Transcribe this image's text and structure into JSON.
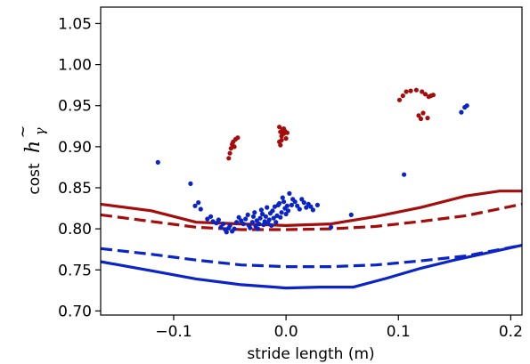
{
  "chart_data": {
    "type": "scatter",
    "xlabel": "stride length (m)",
    "ylabel": {
      "prefix": "cost",
      "symbol": "h",
      "subscript": "γ"
    },
    "xlim": [
      -0.165,
      0.21
    ],
    "ylim": [
      0.695,
      1.07
    ],
    "xticks": [
      {
        "value": -0.1,
        "label": "−0.1"
      },
      {
        "value": 0.0,
        "label": "0.0"
      },
      {
        "value": 0.1,
        "label": "0.1"
      },
      {
        "value": 0.2,
        "label": "0.2"
      }
    ],
    "yticks": [
      {
        "value": 0.7,
        "label": "0.70"
      },
      {
        "value": 0.75,
        "label": "0.75"
      },
      {
        "value": 0.8,
        "label": "0.80"
      },
      {
        "value": 0.85,
        "label": "0.85"
      },
      {
        "value": 0.9,
        "label": "0.90"
      },
      {
        "value": 0.95,
        "label": "0.95"
      },
      {
        "value": 1.0,
        "label": "1.00"
      },
      {
        "value": 1.05,
        "label": "1.05"
      }
    ],
    "grid": false,
    "colors": {
      "red": "#a50d0d",
      "blue": "#0b24c8"
    },
    "series": [
      {
        "kind": "line",
        "style": "solid",
        "color": "red",
        "x": [
          -0.165,
          -0.12,
          -0.08,
          -0.04,
          0.0,
          0.04,
          0.08,
          0.12,
          0.16,
          0.19,
          0.21
        ],
        "y": [
          0.83,
          0.822,
          0.808,
          0.806,
          0.804,
          0.806,
          0.815,
          0.826,
          0.84,
          0.846,
          0.846
        ]
      },
      {
        "kind": "line",
        "style": "dashed",
        "color": "red",
        "x": [
          -0.165,
          -0.12,
          -0.08,
          -0.04,
          0.0,
          0.04,
          0.08,
          0.12,
          0.16,
          0.21
        ],
        "y": [
          0.817,
          0.809,
          0.802,
          0.799,
          0.799,
          0.8,
          0.803,
          0.809,
          0.816,
          0.83
        ]
      },
      {
        "kind": "line",
        "style": "dashed",
        "color": "blue",
        "x": [
          -0.165,
          -0.12,
          -0.08,
          -0.04,
          0.0,
          0.04,
          0.08,
          0.12,
          0.16,
          0.21
        ],
        "y": [
          0.776,
          0.769,
          0.762,
          0.756,
          0.754,
          0.754,
          0.756,
          0.761,
          0.767,
          0.78
        ]
      },
      {
        "kind": "line",
        "style": "solid",
        "color": "blue",
        "x": [
          -0.165,
          -0.12,
          -0.08,
          -0.04,
          -0.01,
          0.0,
          0.03,
          0.06,
          0.09,
          0.12,
          0.15,
          0.18,
          0.21
        ],
        "y": [
          0.76,
          0.749,
          0.739,
          0.732,
          0.729,
          0.728,
          0.729,
          0.729,
          0.74,
          0.752,
          0.762,
          0.771,
          0.78
        ]
      },
      {
        "kind": "points",
        "color": "red",
        "points": [
          [
            -0.051,
            0.886
          ],
          [
            -0.05,
            0.892
          ],
          [
            -0.049,
            0.898
          ],
          [
            -0.048,
            0.903
          ],
          [
            -0.047,
            0.906
          ],
          [
            -0.045,
            0.909
          ],
          [
            -0.043,
            0.911
          ],
          [
            -0.046,
            0.9
          ],
          [
            -0.006,
            0.924
          ],
          [
            -0.005,
            0.918
          ],
          [
            -0.004,
            0.913
          ],
          [
            -0.006,
            0.906
          ],
          [
            -0.005,
            0.902
          ],
          [
            -0.003,
            0.921
          ],
          [
            -0.002,
            0.916
          ],
          [
            -0.001,
            0.919
          ],
          [
            0.0,
            0.91
          ],
          [
            -0.004,
            0.908
          ],
          [
            -0.002,
            0.922
          ],
          [
            0.001,
            0.917
          ],
          [
            0.101,
            0.957
          ],
          [
            0.104,
            0.962
          ],
          [
            0.107,
            0.967
          ],
          [
            0.111,
            0.968
          ],
          [
            0.116,
            0.969
          ],
          [
            0.118,
            0.938
          ],
          [
            0.12,
            0.934
          ],
          [
            0.121,
            0.967
          ],
          [
            0.122,
            0.941
          ],
          [
            0.124,
            0.964
          ],
          [
            0.126,
            0.935
          ],
          [
            0.127,
            0.961
          ],
          [
            0.129,
            0.962
          ],
          [
            0.131,
            0.963
          ]
        ]
      },
      {
        "kind": "points",
        "color": "blue",
        "points": [
          [
            -0.114,
            0.881
          ],
          [
            -0.085,
            0.855
          ],
          [
            -0.081,
            0.828
          ],
          [
            -0.078,
            0.832
          ],
          [
            -0.076,
            0.824
          ],
          [
            -0.07,
            0.812
          ],
          [
            -0.067,
            0.815
          ],
          [
            -0.065,
            0.809
          ],
          [
            -0.062,
            0.807
          ],
          [
            -0.06,
            0.811
          ],
          [
            -0.058,
            0.802
          ],
          [
            -0.056,
            0.806
          ],
          [
            -0.054,
            0.799
          ],
          [
            -0.053,
            0.796
          ],
          [
            -0.051,
            0.801
          ],
          [
            -0.05,
            0.804
          ],
          [
            -0.048,
            0.797
          ],
          [
            -0.046,
            0.8
          ],
          [
            -0.044,
            0.808
          ],
          [
            -0.042,
            0.814
          ],
          [
            -0.04,
            0.81
          ],
          [
            -0.038,
            0.806
          ],
          [
            -0.036,
            0.812
          ],
          [
            -0.034,
            0.817
          ],
          [
            -0.033,
            0.804
          ],
          [
            -0.032,
            0.801
          ],
          [
            -0.03,
            0.808
          ],
          [
            -0.029,
            0.815
          ],
          [
            -0.028,
            0.82
          ],
          [
            -0.027,
            0.803
          ],
          [
            -0.026,
            0.81
          ],
          [
            -0.025,
            0.8
          ],
          [
            -0.024,
            0.806
          ],
          [
            -0.023,
            0.813
          ],
          [
            -0.022,
            0.823
          ],
          [
            -0.021,
            0.818
          ],
          [
            -0.02,
            0.805
          ],
          [
            -0.019,
            0.809
          ],
          [
            -0.018,
            0.815
          ],
          [
            -0.017,
            0.826
          ],
          [
            -0.016,
            0.807
          ],
          [
            -0.015,
            0.811
          ],
          [
            -0.014,
            0.819
          ],
          [
            -0.013,
            0.804
          ],
          [
            -0.012,
            0.822
          ],
          [
            -0.011,
            0.813
          ],
          [
            -0.01,
            0.827
          ],
          [
            -0.009,
            0.808
          ],
          [
            -0.008,
            0.816
          ],
          [
            -0.007,
            0.829
          ],
          [
            -0.006,
            0.831
          ],
          [
            -0.005,
            0.814
          ],
          [
            -0.004,
            0.82
          ],
          [
            -0.003,
            0.838
          ],
          [
            -0.002,
            0.833
          ],
          [
            -0.001,
            0.825
          ],
          [
            0.0,
            0.818
          ],
          [
            0.001,
            0.828
          ],
          [
            0.002,
            0.822
          ],
          [
            0.003,
            0.843
          ],
          [
            0.005,
            0.829
          ],
          [
            0.006,
            0.836
          ],
          [
            0.008,
            0.833
          ],
          [
            0.01,
            0.828
          ],
          [
            0.012,
            0.824
          ],
          [
            0.014,
            0.836
          ],
          [
            0.016,
            0.832
          ],
          [
            0.018,
            0.826
          ],
          [
            0.02,
            0.83
          ],
          [
            0.022,
            0.827
          ],
          [
            0.024,
            0.823
          ],
          [
            0.028,
            0.829
          ],
          [
            0.04,
            0.802
          ],
          [
            0.058,
            0.817
          ],
          [
            0.105,
            0.866
          ],
          [
            0.156,
            0.942
          ],
          [
            0.159,
            0.948
          ],
          [
            0.161,
            0.95
          ]
        ]
      }
    ]
  }
}
